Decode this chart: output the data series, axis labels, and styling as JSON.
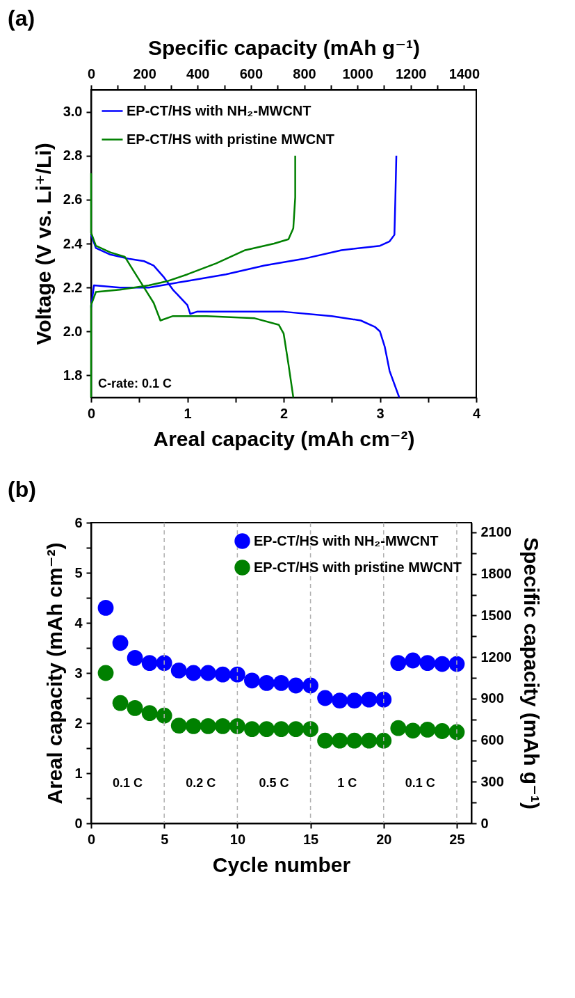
{
  "chart_data": [
    {
      "type": "line",
      "title": "(a)",
      "xlabel": "Areal capacity (mAh cm⁻²)",
      "ylabel": "Voltage (V vs. Li⁺/Li)",
      "x2label": "Specific capacity (mAh g⁻¹)",
      "xlim": [
        0,
        4
      ],
      "xticks": [
        0,
        {
          "value": 0.5,
          "label": null
        },
        1,
        {
          "value": 1.5,
          "label": null
        },
        2,
        {
          "value": 2.5,
          "label": null
        },
        3,
        {
          "value": 3.5,
          "label": null
        },
        4
      ],
      "ylim": [
        1.7,
        3.1
      ],
      "yticks": [
        1.8,
        {
          "value": 2,
          "label": "2.0"
        },
        2.2,
        2.4,
        2.6,
        2.8,
        {
          "value": 3,
          "label": "3.0"
        }
      ],
      "x2lim": [
        0,
        1446
      ],
      "x2ticks": [
        0,
        {
          "value": 100,
          "label": null
        },
        200,
        {
          "value": 300,
          "label": null
        },
        400,
        {
          "value": 500,
          "label": null
        },
        600,
        {
          "value": 700,
          "label": null
        },
        800,
        {
          "value": 900,
          "label": null
        },
        1000,
        {
          "value": 1100,
          "label": null
        },
        1200,
        {
          "value": 1300,
          "label": null
        },
        1400
      ],
      "legend": "top left",
      "annotations": [
        "C-rate: 0.1 C"
      ],
      "series": [
        {
          "name": "EP-CT/HS with NH₂-MWCNT",
          "color": "#0000ff",
          "x": [
            0,
            0.05,
            0.2,
            0.4,
            0.55,
            0.65,
            0.75,
            0.85,
            1.0,
            1.03,
            1.1,
            1.4,
            2.0,
            2.5,
            2.8,
            2.95,
            3.0,
            3.05,
            3.1,
            3.2
          ],
          "values": [
            2.44,
            2.38,
            2.35,
            2.33,
            2.32,
            2.3,
            2.25,
            2.19,
            2.12,
            2.08,
            2.09,
            2.09,
            2.09,
            2.07,
            2.05,
            2.02,
            2.0,
            1.93,
            1.82,
            1.7
          ]
        },
        {
          "color": "#0000ff",
          "x": [
            0,
            0.03,
            0.3,
            0.6,
            1.0,
            1.4,
            1.8,
            2.2,
            2.6,
            3.0,
            3.1,
            3.15,
            3.16,
            3.17
          ],
          "values": [
            2.11,
            2.21,
            2.2,
            2.2,
            2.23,
            2.26,
            2.3,
            2.33,
            2.37,
            2.39,
            2.41,
            2.44,
            2.61,
            2.8
          ]
        },
        {
          "name": "EP-CT/HS with pristine MWCNT",
          "color": "#008000",
          "x": [
            0,
            0,
            0.05,
            0.2,
            0.35,
            0.45,
            0.55,
            0.65,
            0.72,
            0.85,
            1.2,
            1.7,
            1.95,
            2.0,
            2.05,
            2.1
          ],
          "values": [
            2.72,
            2.45,
            2.39,
            2.36,
            2.34,
            2.27,
            2.2,
            2.13,
            2.05,
            2.07,
            2.07,
            2.06,
            2.03,
            1.99,
            1.85,
            1.7
          ]
        },
        {
          "color": "#008000",
          "x": [
            0,
            0,
            0.05,
            0.3,
            0.6,
            0.8,
            1.0,
            1.3,
            1.6,
            1.9,
            2.05,
            2.1,
            2.12,
            2.12
          ],
          "values": [
            1.7,
            2.12,
            2.18,
            2.19,
            2.21,
            2.23,
            2.26,
            2.31,
            2.37,
            2.4,
            2.42,
            2.47,
            2.61,
            2.8
          ]
        }
      ]
    },
    {
      "type": "scatter",
      "title": "(b)",
      "xlabel": "Cycle number",
      "ylabel": "Areal capacity (mAh cm⁻²)",
      "y2label": "Specific capacity (mAh g⁻¹)",
      "xlim": [
        0,
        26
      ],
      "xticks": [
        0,
        5,
        10,
        15,
        20,
        25
      ],
      "ylim": [
        0,
        6
      ],
      "yticks": [
        0,
        {
          "value": 0.5,
          "label": null
        },
        1,
        {
          "value": 1.5,
          "label": null
        },
        2,
        {
          "value": 2.5,
          "label": null
        },
        3,
        {
          "value": 3.5,
          "label": null
        },
        4,
        {
          "value": 4.5,
          "label": null
        },
        5,
        {
          "value": 5.5,
          "label": null
        },
        6
      ],
      "y2lim": [
        0,
        2170
      ],
      "y2ticks": [
        0,
        {
          "value": 150,
          "label": null
        },
        300,
        {
          "value": 450,
          "label": null
        },
        600,
        {
          "value": 750,
          "label": null
        },
        900,
        {
          "value": 1050,
          "label": null
        },
        1200,
        {
          "value": 1350,
          "label": null
        },
        1500,
        {
          "value": 1650,
          "label": null
        },
        1800,
        {
          "value": 1950,
          "label": null
        },
        2100
      ],
      "legend": "top right",
      "marker": "circle",
      "x": [
        1,
        2,
        3,
        4,
        5,
        6,
        7,
        8,
        9,
        10,
        11,
        12,
        13,
        14,
        15,
        16,
        17,
        18,
        19,
        20,
        21,
        22,
        23,
        24,
        25
      ],
      "series": [
        {
          "name": "EP-CT/HS with NH₂-MWCNT",
          "color": "#0000ff",
          "values": [
            4.3,
            3.6,
            3.3,
            3.2,
            3.2,
            3.05,
            3.0,
            3.0,
            2.97,
            2.97,
            2.85,
            2.8,
            2.8,
            2.75,
            2.75,
            2.5,
            2.45,
            2.45,
            2.47,
            2.47,
            3.2,
            3.25,
            3.2,
            3.18,
            3.18
          ]
        },
        {
          "name": "EP-CT/HS with pristine MWCNT",
          "color": "#008000",
          "values": [
            3.0,
            2.4,
            2.3,
            2.2,
            2.15,
            1.95,
            1.94,
            1.94,
            1.94,
            1.94,
            1.88,
            1.88,
            1.88,
            1.88,
            1.88,
            1.65,
            1.65,
            1.65,
            1.65,
            1.65,
            1.9,
            1.85,
            1.87,
            1.84,
            1.82
          ]
        }
      ],
      "ref_lines": [
        {
          "axis": "x",
          "value": 5,
          "color": "#b0b0b0",
          "line_style": "dashed"
        },
        {
          "axis": "x",
          "value": 10,
          "color": "#b0b0b0",
          "line_style": "dashed"
        },
        {
          "axis": "x",
          "value": 15,
          "color": "#b0b0b0",
          "line_style": "dashed"
        },
        {
          "axis": "x",
          "value": 20,
          "color": "#b0b0b0",
          "line_style": "dashed"
        },
        {
          "axis": "x",
          "value": 25,
          "color": "#b0b0b0",
          "line_style": "dashed"
        }
      ],
      "annotations": [
        "0.1 C",
        "0.2 C",
        "0.5 C",
        "1 C",
        "0.1 C"
      ]
    }
  ]
}
